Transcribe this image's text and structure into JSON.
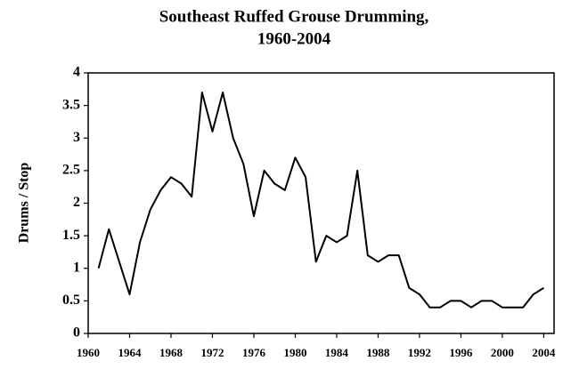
{
  "chart_data": {
    "type": "line",
    "title": [
      "Southeast Ruffed Grouse Drumming,",
      "1960-2004"
    ],
    "y_label": "Drums / Stop",
    "x": [
      1961,
      1962,
      1963,
      1964,
      1965,
      1966,
      1967,
      1968,
      1969,
      1970,
      1971,
      1972,
      1973,
      1974,
      1975,
      1976,
      1977,
      1978,
      1979,
      1980,
      1981,
      1982,
      1983,
      1984,
      1985,
      1986,
      1987,
      1988,
      1989,
      1990,
      1991,
      1992,
      1993,
      1994,
      1995,
      1996,
      1997,
      1998,
      1999,
      2000,
      2001,
      2002,
      2003,
      2004
    ],
    "series": [
      {
        "color": "#000000",
        "values": [
          1.0,
          1.6,
          1.1,
          0.6,
          1.4,
          1.9,
          2.2,
          2.4,
          2.3,
          2.1,
          3.7,
          3.1,
          3.7,
          3.0,
          2.6,
          1.8,
          2.5,
          2.3,
          2.2,
          2.7,
          2.4,
          1.1,
          1.5,
          1.4,
          1.5,
          2.5,
          1.2,
          1.1,
          1.2,
          1.2,
          0.7,
          0.6,
          0.4,
          0.4,
          0.5,
          0.5,
          0.4,
          0.5,
          0.5,
          0.4,
          0.4,
          0.4,
          0.6,
          0.7
        ]
      }
    ],
    "xlim": [
      1960,
      2005
    ],
    "xticks": [
      1960,
      1964,
      1968,
      1972,
      1976,
      1980,
      1984,
      1988,
      1992,
      1996,
      2000,
      2004
    ],
    "ylim": [
      0,
      4
    ],
    "yticks": [
      0,
      0.5,
      1,
      1.5,
      2,
      2.5,
      3,
      3.5,
      4
    ],
    "grid": false
  }
}
